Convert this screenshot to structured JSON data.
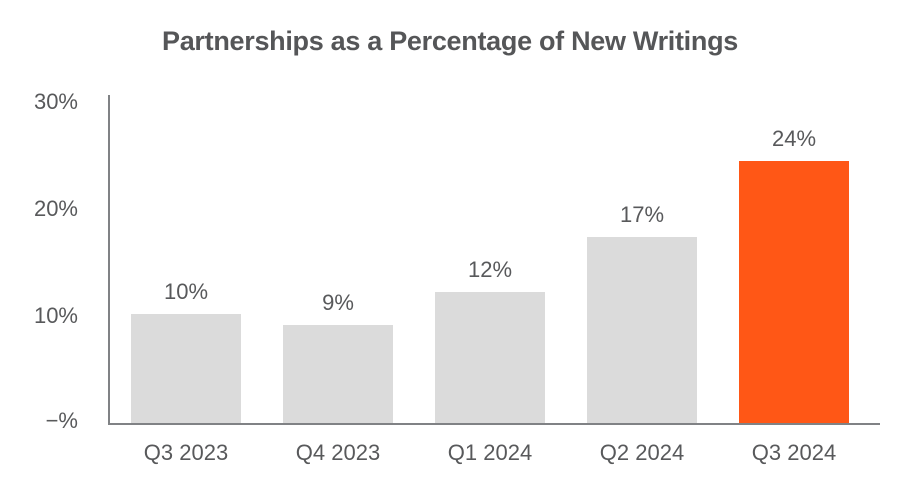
{
  "chart_data": {
    "type": "bar",
    "title": "Partnerships as a Percentage of New Writings",
    "categories": [
      "Q3 2023",
      "Q4 2023",
      "Q1 2024",
      "Q2 2024",
      "Q3 2024"
    ],
    "values": [
      10,
      9,
      12,
      17,
      24
    ],
    "value_labels": [
      "10%",
      "9%",
      "12%",
      "17%",
      "24%"
    ],
    "y_tick_labels": [
      "30%",
      "20%",
      "10%",
      "−%"
    ],
    "ylim": [
      0,
      30
    ],
    "grid": false,
    "legend": "none",
    "highlight_index": 4,
    "bar_color_default": "#DBDBDB",
    "bar_color_highlight": "#FF5716",
    "axis_color": "#808285",
    "text_color": "#58595B"
  }
}
